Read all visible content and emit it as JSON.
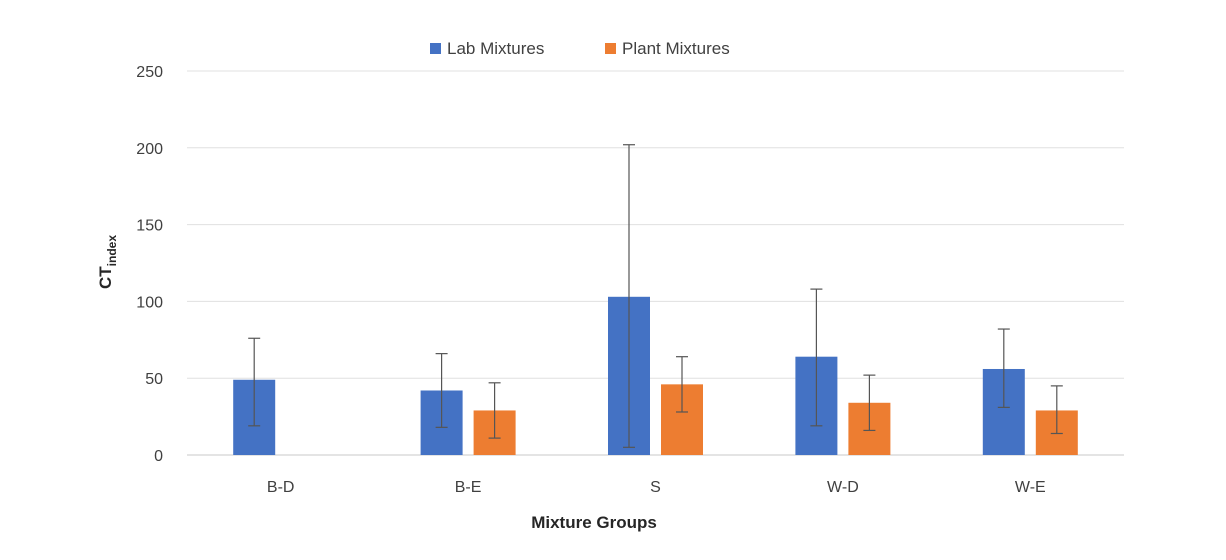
{
  "chart_data": {
    "type": "bar",
    "title": "",
    "xlabel": "Mixture Groups",
    "ylabel": "CT",
    "ylabel_subscript": "index",
    "ylim": [
      0,
      250
    ],
    "yticks": [
      0,
      50,
      100,
      150,
      200,
      250
    ],
    "grid": true,
    "legend": "top-center",
    "categories": [
      "B-D",
      "B-E",
      "S",
      "W-D",
      "W-E"
    ],
    "series": [
      {
        "name": "Lab Mixtures",
        "color": "#4472C4",
        "values": [
          49,
          42,
          103,
          64,
          56
        ],
        "error_low": [
          19,
          18,
          5,
          19,
          31
        ],
        "error_high": [
          76,
          66,
          202,
          108,
          82
        ]
      },
      {
        "name": "Plant Mixtures",
        "color": "#ED7D31",
        "values": [
          null,
          29,
          46,
          34,
          29
        ],
        "error_low": [
          null,
          11,
          28,
          16,
          14
        ],
        "error_high": [
          null,
          47,
          64,
          52,
          45
        ]
      }
    ]
  }
}
